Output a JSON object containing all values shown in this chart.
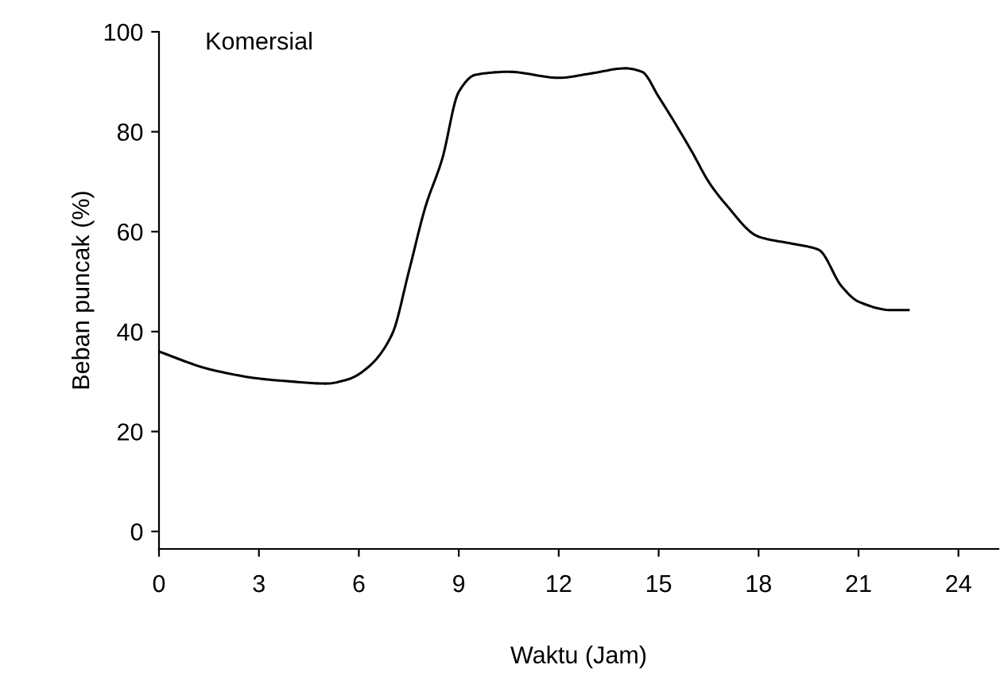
{
  "chart_data": {
    "type": "line",
    "xlabel": "Waktu (Jam)",
    "ylabel": "Beban puncak (%)",
    "annotations": [
      "Komersial"
    ],
    "x": [
      0,
      1.5,
      3,
      4,
      5,
      5.7,
      6.3,
      7,
      7.5,
      8,
      8.5,
      9,
      9.5,
      10.5,
      12,
      13,
      14,
      14.5,
      15,
      16,
      16.5,
      17,
      18,
      19,
      19.8,
      20.5,
      21,
      22,
      22.5
    ],
    "series": [
      {
        "color": "#000000",
        "values": [
          36,
          32.5,
          30.6,
          30,
          29.6,
          30.5,
          33,
          39.5,
          52,
          65,
          74.5,
          88,
          91.4,
          92,
          90.8,
          91.7,
          92.7,
          92,
          87,
          76,
          70,
          65.6,
          59,
          57.6,
          56.4,
          49,
          46,
          44.3,
          44.3
        ]
      }
    ],
    "xlim": [
      0,
      25.2
    ],
    "ylim": [
      -3.5,
      100
    ],
    "xticks": [
      0,
      3,
      6,
      9,
      12,
      15,
      18,
      21,
      24
    ],
    "yticks": [
      0,
      20,
      40,
      60,
      80,
      100
    ],
    "grid": false,
    "marker": "none",
    "line_style": "solid"
  }
}
